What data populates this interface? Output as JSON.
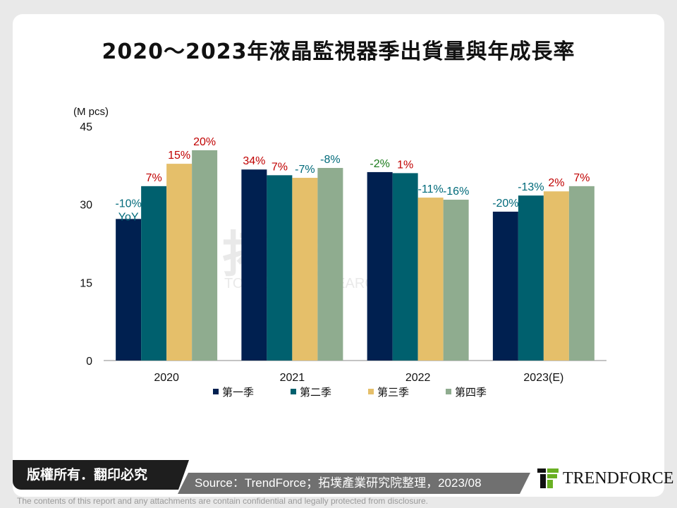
{
  "title": "2020～2023年液晶監視器季出貨量與年成長率",
  "chart_data": {
    "type": "bar",
    "title": "2020～2023年液晶監視器季出貨量與年成長率",
    "ylabel": "(M pcs)",
    "ylim": [
      0,
      45
    ],
    "yticks": [
      "0",
      "15",
      "30",
      "45"
    ],
    "categories": [
      "2020",
      "2021",
      "2022",
      "2023(E)"
    ],
    "legend_position": "bottom",
    "grid": false,
    "series": [
      {
        "name": "第一季",
        "color": "#002050",
        "values": [
          27.2,
          36.7,
          36.2,
          28.6
        ],
        "labels": [
          "-10%",
          "34%",
          "-2%",
          "-20%"
        ]
      },
      {
        "name": "第二季",
        "color": "#00606e",
        "values": [
          33.5,
          35.6,
          36.0,
          31.7
        ],
        "labels": [
          "7%",
          "7%",
          "1%",
          "-13%"
        ]
      },
      {
        "name": "第三季",
        "color": "#e5bf6a",
        "values": [
          37.8,
          35.1,
          31.3,
          32.5
        ],
        "labels": [
          "15%",
          "-7%",
          "-11%",
          "2%"
        ]
      },
      {
        "name": "第四季",
        "color": "#8fac8f",
        "values": [
          40.4,
          37.0,
          30.9,
          33.5
        ],
        "labels": [
          "20%",
          "-8%",
          "-16%",
          "7%"
        ]
      }
    ],
    "label_note": "YoY",
    "label_colors": {
      "positive": "#c00000",
      "negative": "#006a7a",
      "small_negative": "#1a7a1a"
    }
  },
  "watermark": {
    "cn": "拓墣",
    "en": "TOPOLOGY RESEARCH INSTITUTE"
  },
  "footer": {
    "copyright": "版權所有．翻印必究",
    "source": "Source：TrendForce；拓墣產業研究院整理，2023/08",
    "logo": "TRENDFORCE",
    "disclaimer": "The contents of this report and any attachments are contain confidential and legally protected from disclosure."
  }
}
